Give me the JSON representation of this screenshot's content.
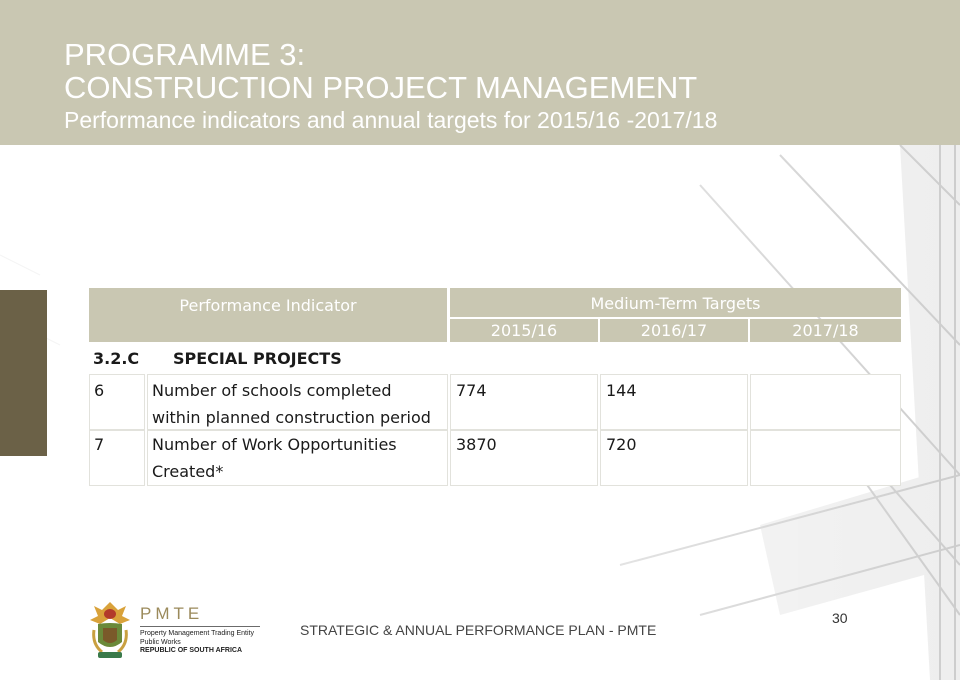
{
  "header": {
    "title_line1": "PROGRAMME 3:",
    "title_line2": "CONSTRUCTION PROJECT MANAGEMENT",
    "subtitle": "Performance indicators and annual targets for 2015/16 -2017/18"
  },
  "table": {
    "indicator_header": "Performance Indicator",
    "targets_header": "Medium-Term Targets",
    "years": [
      "2015/16",
      "2016/17",
      "2017/18"
    ],
    "section": {
      "code": "3.2.C",
      "label": "SPECIAL PROJECTS"
    },
    "rows": [
      {
        "num": "6",
        "indicator_line1": "Number of schools completed",
        "indicator_line2": "within planned construction period",
        "values": [
          "774",
          "144",
          ""
        ]
      },
      {
        "num": "7",
        "indicator_line1": "Number of Work Opportunities",
        "indicator_line2": "Created*",
        "values": [
          "3870",
          "720",
          ""
        ]
      }
    ]
  },
  "footer": {
    "text": "STRATEGIC & ANNUAL PERFORMANCE PLAN - PMTE",
    "page_number": "30"
  },
  "logo": {
    "wordmark": "PMTE",
    "line1": "Property Management Trading Entity",
    "line2": "Public Works",
    "line3": "REPUBLIC OF SOUTH AFRICA"
  },
  "colors": {
    "header_band": "#c9c7b2",
    "accent_bar": "#6b6147",
    "table_header": "#c9c7b2",
    "text_white": "#ffffff"
  }
}
